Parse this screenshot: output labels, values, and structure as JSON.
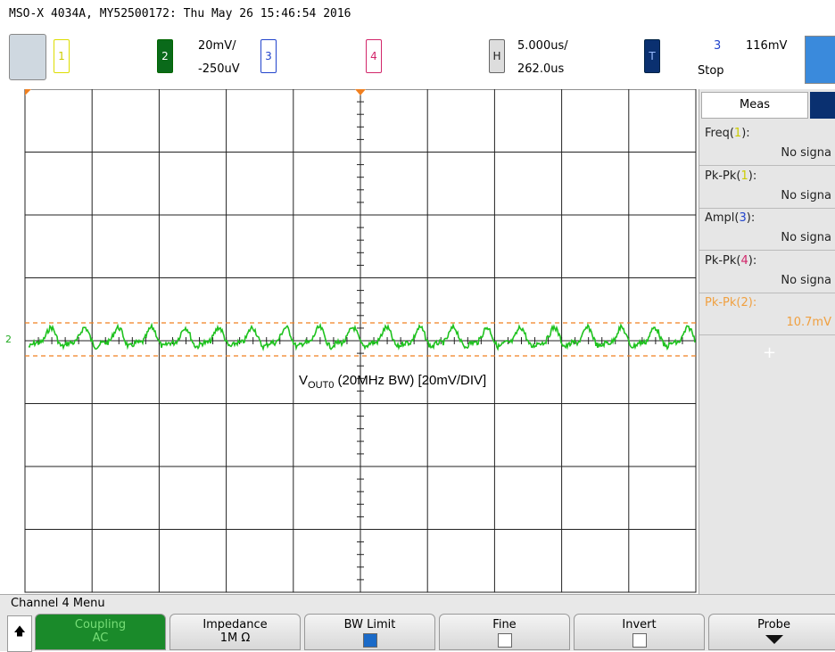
{
  "header": {
    "title": "MSO-X 4034A, MY52500172: Thu May 26 15:46:54 2016"
  },
  "topbar": {
    "ch1": "1",
    "ch2": "2",
    "ch2_scale": "20mV/",
    "ch2_offset": "-250uV",
    "ch3": "3",
    "ch4": "4",
    "horiz": "H",
    "time_scale": "5.000us/",
    "time_delay": "262.0us",
    "trig": "T",
    "trig_source": "3",
    "trig_level": "116mV",
    "run_state": "Stop"
  },
  "screen": {
    "ground_marker": "2",
    "label_main": "V",
    "label_sub": "OUT0",
    "label_rest": "(20MHz BW) [20mV/DIV]"
  },
  "meas": {
    "title": "Meas",
    "items": [
      {
        "prefix": "Freq(",
        "channel": "1",
        "suffix": "):",
        "value": "No signa"
      },
      {
        "prefix": "Pk-Pk(",
        "channel": "1",
        "suffix": "):",
        "value": "No signa"
      },
      {
        "prefix": "Ampl(",
        "channel": "3",
        "suffix": "):",
        "value": "No signa"
      },
      {
        "prefix": "Pk-Pk(",
        "channel": "4",
        "suffix": "):",
        "value": "No signa"
      },
      {
        "prefix": "Pk-Pk(",
        "channel": "2",
        "suffix": "):",
        "value": "10.7mV"
      }
    ],
    "add": "+"
  },
  "menu": {
    "title": "Channel 4 Menu",
    "keys": [
      {
        "label": "Coupling",
        "value": "AC"
      },
      {
        "label": "Impedance",
        "value": "1M Ω"
      },
      {
        "label": "BW Limit"
      },
      {
        "label": "Fine"
      },
      {
        "label": "Invert"
      },
      {
        "label": "Probe"
      }
    ]
  }
}
